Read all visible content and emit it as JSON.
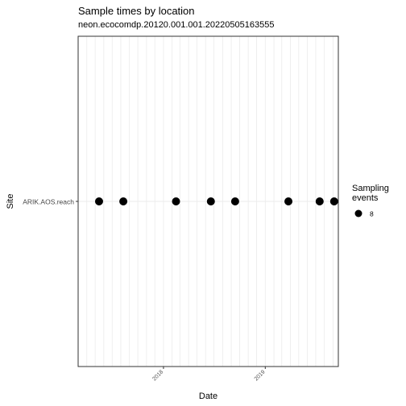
{
  "chart_data": {
    "type": "scatter",
    "title": "Sample times by location",
    "subtitle": "neon.ecocomdp.20120.001.001.20220505163555",
    "xlabel": "Date",
    "ylabel": "Site",
    "x_axis": {
      "type": "date",
      "ticks": [
        "2018",
        "2019"
      ],
      "tick_dates": [
        "2018-01-01",
        "2019-01-01"
      ],
      "range": [
        "2017-03-01",
        "2019-09-20"
      ]
    },
    "categories": [
      "ARIK.AOS.reach"
    ],
    "points": [
      {
        "site": "ARIK.AOS.reach",
        "date": "2017-05-15",
        "sampling_events": 8
      },
      {
        "site": "ARIK.AOS.reach",
        "date": "2017-08-10",
        "sampling_events": 8
      },
      {
        "site": "ARIK.AOS.reach",
        "date": "2018-02-15",
        "sampling_events": 8
      },
      {
        "site": "ARIK.AOS.reach",
        "date": "2018-06-20",
        "sampling_events": 8
      },
      {
        "site": "ARIK.AOS.reach",
        "date": "2018-09-15",
        "sampling_events": 8
      },
      {
        "site": "ARIK.AOS.reach",
        "date": "2019-03-25",
        "sampling_events": 8
      },
      {
        "site": "ARIK.AOS.reach",
        "date": "2019-07-15",
        "sampling_events": 8
      },
      {
        "site": "ARIK.AOS.reach",
        "date": "2019-09-05",
        "sampling_events": 8
      }
    ],
    "legend": {
      "title": "Sampling\nevents",
      "entries": [
        "8"
      ],
      "position": "right"
    },
    "grid": true
  }
}
